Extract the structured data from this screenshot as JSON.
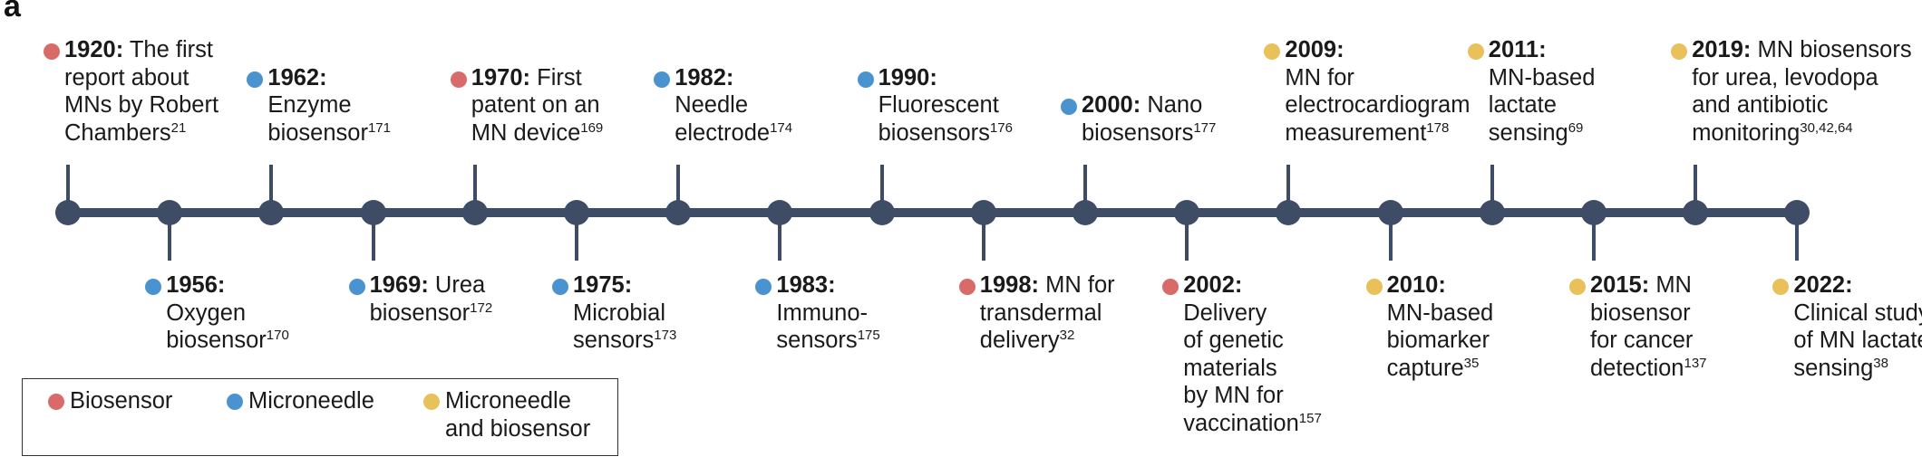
{
  "panel_label": "a",
  "colors": {
    "biosensor": "#d96a6a",
    "microneedle": "#4a93d1",
    "both": "#e8c15a",
    "timeline": "#3f4c66"
  },
  "legend": [
    {
      "category": "biosensor",
      "lines": [
        "Biosensor"
      ]
    },
    {
      "category": "microneedle",
      "lines": [
        "Microneedle"
      ]
    },
    {
      "category": "both",
      "lines": [
        "Microneedle",
        "and biosensor"
      ]
    }
  ],
  "events": [
    {
      "year": "1920:",
      "category": "biosensor",
      "position": "above",
      "lines": [
        " The first",
        "report about",
        "MNs by Robert",
        "Chambers"
      ],
      "ref": "21"
    },
    {
      "year": "1956:",
      "category": "microneedle",
      "position": "below",
      "lines": [
        "",
        "Oxygen",
        "biosensor"
      ],
      "ref": "170"
    },
    {
      "year": "1962:",
      "category": "microneedle",
      "position": "above",
      "lines": [
        "",
        "Enzyme",
        "biosensor"
      ],
      "ref": "171"
    },
    {
      "year": "1969:",
      "category": "microneedle",
      "position": "below",
      "lines": [
        " Urea",
        "biosensor"
      ],
      "ref": "172"
    },
    {
      "year": "1970:",
      "category": "biosensor",
      "position": "above",
      "lines": [
        " First",
        "patent on an",
        "MN device"
      ],
      "ref": "169"
    },
    {
      "year": "1975:",
      "category": "microneedle",
      "position": "below",
      "lines": [
        "",
        "Microbial",
        "sensors"
      ],
      "ref": "173"
    },
    {
      "year": "1982:",
      "category": "microneedle",
      "position": "above",
      "lines": [
        "",
        "Needle",
        "electrode"
      ],
      "ref": "174"
    },
    {
      "year": "1983:",
      "category": "microneedle",
      "position": "below",
      "lines": [
        "",
        "Immuno-",
        "sensors"
      ],
      "ref": "175"
    },
    {
      "year": "1990:",
      "category": "microneedle",
      "position": "above",
      "lines": [
        "",
        "Fluorescent",
        "biosensors"
      ],
      "ref": "176"
    },
    {
      "year": "1998:",
      "category": "biosensor",
      "position": "below",
      "lines": [
        " MN for",
        "transdermal",
        "delivery"
      ],
      "ref": "32"
    },
    {
      "year": "2000:",
      "category": "microneedle",
      "position": "above",
      "lines": [
        " Nano",
        "biosensors"
      ],
      "ref": "177"
    },
    {
      "year": "2002:",
      "category": "biosensor",
      "position": "below",
      "lines": [
        "",
        "Delivery",
        "of genetic",
        "materials",
        "by MN for",
        "vaccination"
      ],
      "ref": "157"
    },
    {
      "year": "2009:",
      "category": "both",
      "position": "above",
      "lines": [
        "",
        "MN for",
        "electrocardiogram",
        "measurement"
      ],
      "ref": "178"
    },
    {
      "year": "2010:",
      "category": "both",
      "position": "below",
      "lines": [
        "",
        "MN-based",
        "biomarker",
        "capture"
      ],
      "ref": "35"
    },
    {
      "year": "2011:",
      "category": "both",
      "position": "above",
      "lines": [
        "",
        "MN-based",
        "lactate",
        "sensing"
      ],
      "ref": "69"
    },
    {
      "year": "2015:",
      "category": "both",
      "position": "below",
      "lines": [
        " MN",
        "biosensor",
        "for cancer",
        "detection"
      ],
      "ref": "137"
    },
    {
      "year": "2019:",
      "category": "both",
      "position": "above",
      "lines": [
        " MN biosensors",
        "for urea, levodopa",
        "and antibiotic",
        "monitoring"
      ],
      "ref": "30,42,64"
    },
    {
      "year": "2022:",
      "category": "both",
      "position": "below",
      "lines": [
        "",
        "Clinical study",
        "of MN lactate",
        "sensing"
      ],
      "ref": "38"
    }
  ]
}
